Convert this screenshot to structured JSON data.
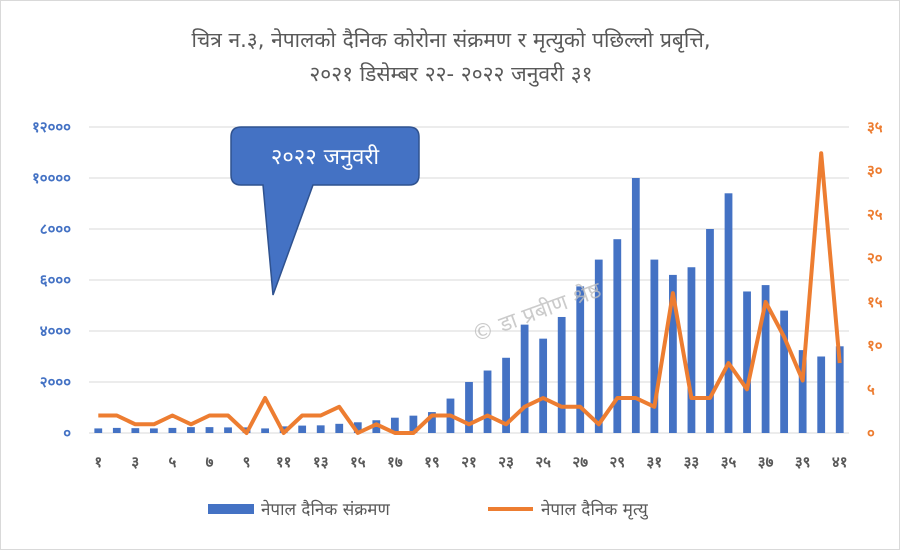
{
  "chart_data": {
    "type": "bar",
    "title": "चित्र न.३, नेपालको दैनिक कोरोना संक्रमण र मृत्युको पछिल्लो प्रबृत्ति,",
    "subtitle": "२०२१ डिसेम्बर २२- २०२२ जनुवरी ३१",
    "callout": "२०२२ जनुवरी",
    "watermark": "© डा प्रबीण श्रेष्ठ",
    "x": [
      1,
      2,
      3,
      4,
      5,
      6,
      7,
      8,
      9,
      10,
      11,
      12,
      13,
      14,
      15,
      16,
      17,
      18,
      19,
      20,
      21,
      22,
      23,
      24,
      25,
      26,
      27,
      28,
      29,
      30,
      31,
      32,
      33,
      34,
      35,
      36,
      37,
      38,
      39,
      40,
      41
    ],
    "x_tick_labels": [
      "१",
      "३",
      "५",
      "७",
      "९",
      "११",
      "१३",
      "१५",
      "१७",
      "१९",
      "२१",
      "२३",
      "२५",
      "२७",
      "२९",
      "३१",
      "३३",
      "३५",
      "३७",
      "३९",
      "४१"
    ],
    "ylim_left": [
      0,
      12000
    ],
    "y_ticks_left": [
      "०",
      "२०००",
      "४०००",
      "६०००",
      "८०००",
      "१००००",
      "१२०००"
    ],
    "ylim_right": [
      0,
      35
    ],
    "y_ticks_right": [
      "०",
      "५",
      "१०",
      "१५",
      "२०",
      "२५",
      "३०",
      "३५"
    ],
    "grid": true,
    "legend_position": "bottom",
    "series": [
      {
        "name": "नेपाल  दैनिक संक्रमण",
        "type": "bar",
        "axis": "left",
        "color": "#4472c4",
        "values": [
          180,
          200,
          190,
          180,
          200,
          230,
          230,
          220,
          220,
          180,
          260,
          290,
          300,
          360,
          420,
          500,
          600,
          680,
          820,
          1350,
          2000,
          2450,
          2950,
          4250,
          3700,
          4550,
          5750,
          6800,
          7600,
          10000,
          6800,
          6200,
          6500,
          8000,
          9400,
          5550,
          5800,
          4800,
          3250,
          3000,
          3400
        ]
      },
      {
        "name": "नेपाल दैनिक मृत्यु",
        "type": "line",
        "axis": "right",
        "color": "#ed7d31",
        "values": [
          2,
          2,
          1,
          1,
          2,
          1,
          2,
          2,
          0,
          4,
          0,
          2,
          2,
          3,
          0,
          1,
          0,
          0,
          2,
          2,
          1,
          2,
          1,
          3,
          4,
          3,
          3,
          1,
          4,
          4,
          3,
          16,
          4,
          4,
          8,
          5,
          15,
          11,
          6,
          32,
          8
        ]
      }
    ]
  }
}
